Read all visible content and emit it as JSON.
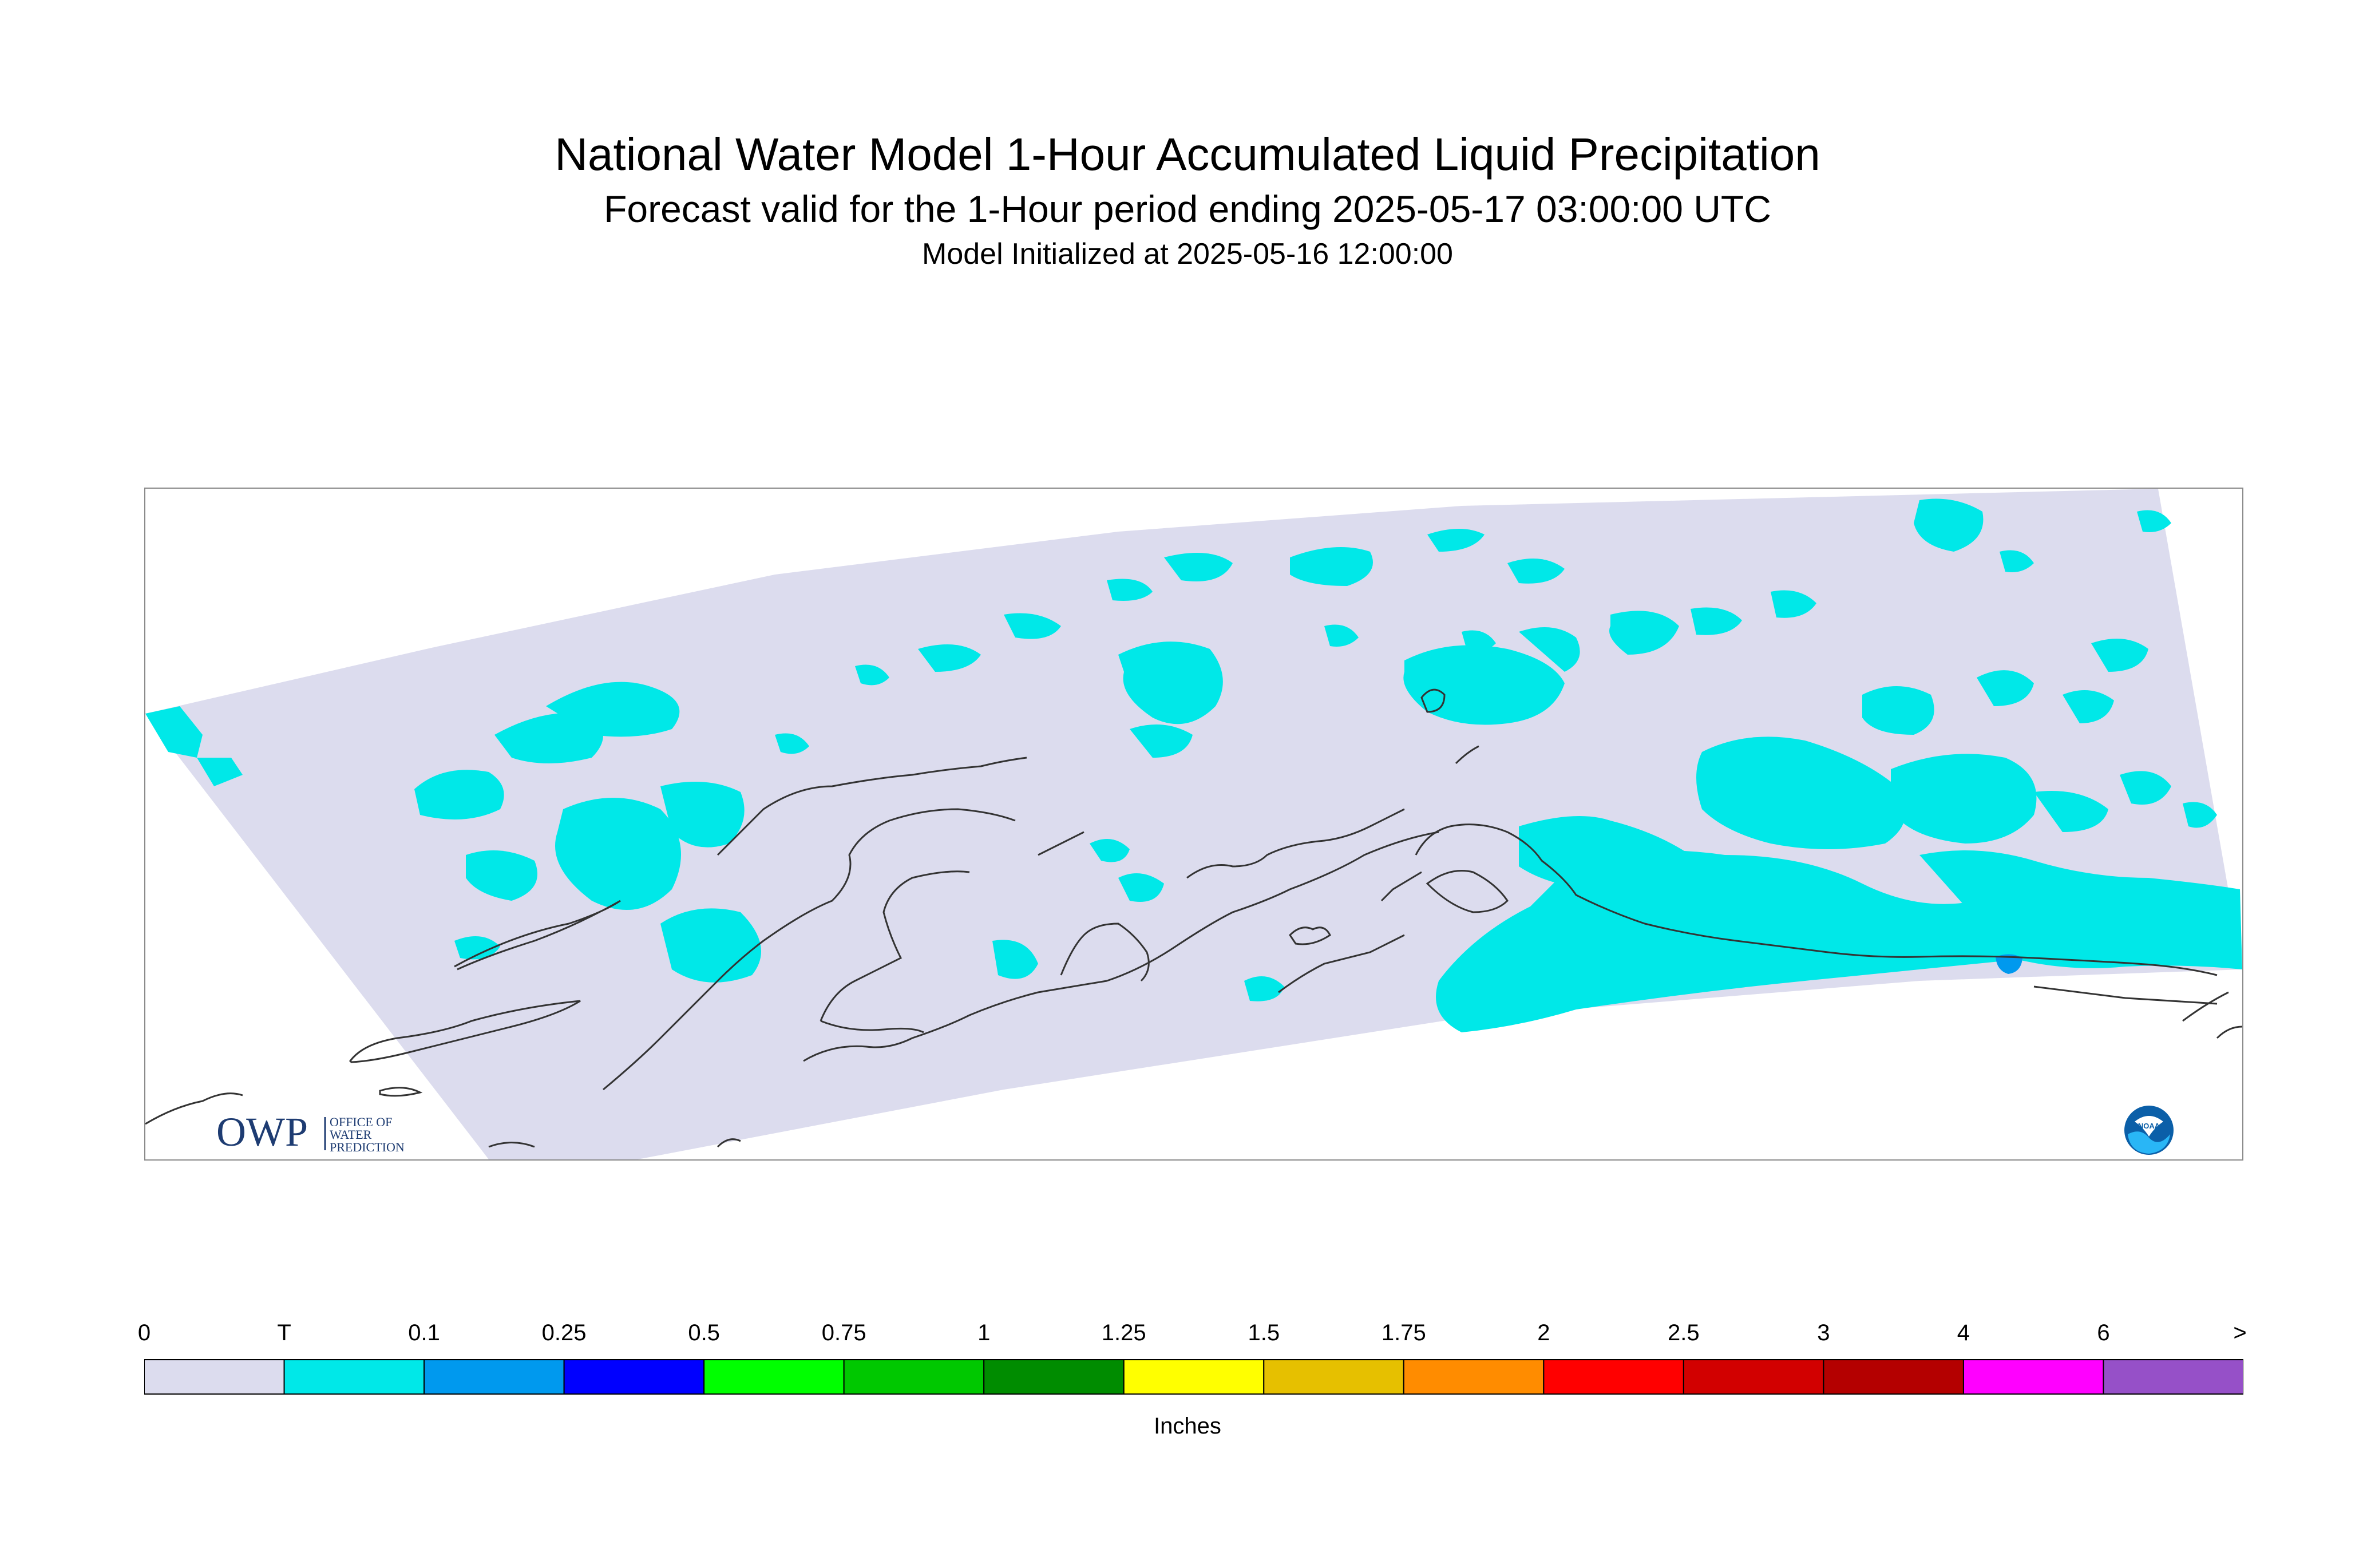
{
  "header": {
    "title": "National Water Model 1-Hour Accumulated Liquid Precipitation",
    "subtitle": "Forecast valid for the 1-Hour period ending 2025-05-17 03:00:00 UTC",
    "initialized": "Model Initialized at 2025-05-16 12:00:00"
  },
  "map": {
    "region": "Alaska",
    "domain_fill_color": "#dcdcee",
    "trace_color": "#00e8e8",
    "light_blue_color": "#0099ee",
    "coastline_color": "#333333"
  },
  "logos": {
    "owp_letters": "OWP",
    "owp_text": [
      "OFFICE OF",
      "WATER",
      "PREDICTION"
    ],
    "noaa_text": "NOAA"
  },
  "colorbar": {
    "labels": [
      "0",
      "T",
      "0.1",
      "0.25",
      "0.5",
      "0.75",
      "1",
      "1.25",
      "1.5",
      "1.75",
      "2",
      "2.5",
      "3",
      "4",
      "6",
      ">"
    ],
    "colors": [
      "#dcdcee",
      "#00e8e8",
      "#0099ee",
      "#0000ff",
      "#00ff00",
      "#00c800",
      "#008c00",
      "#ffff00",
      "#e6c000",
      "#ff8c00",
      "#ff0000",
      "#d20000",
      "#b40000",
      "#ff00ff",
      "#9650c8"
    ],
    "units": "Inches"
  }
}
